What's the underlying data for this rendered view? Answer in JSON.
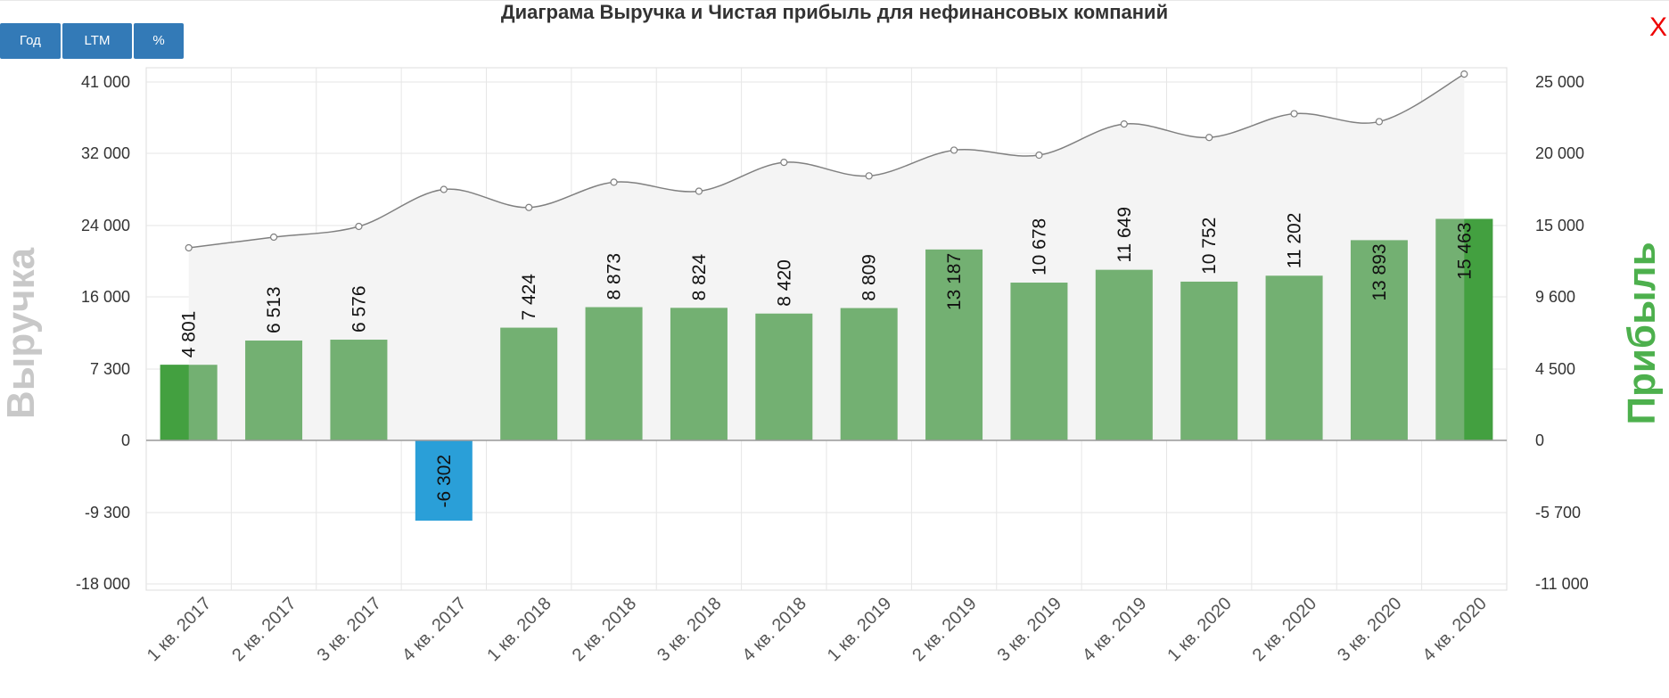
{
  "title": "Диаграма Выручка и Чистая прибыль для нефинансовых компаний",
  "buttons": {
    "year": "Год",
    "ltm": "LTM",
    "pct": "%"
  },
  "close_label": "X",
  "chart_data": {
    "type": "bar",
    "title": "Диаграма Выручка и Чистая прибыль для нефинансовых компаний",
    "categories": [
      "1 кв. 2017",
      "2 кв. 2017",
      "3 кв. 2017",
      "4 кв. 2017",
      "1 кв. 2018",
      "2 кв. 2018",
      "3 кв. 2018",
      "4 кв. 2018",
      "1 кв. 2019",
      "2 кв. 2019",
      "3 кв. 2019",
      "4 кв. 2019",
      "1 кв. 2020",
      "2 кв. 2020",
      "3 кв. 2020",
      "4 кв. 2020"
    ],
    "y_left": {
      "label": "Выручка",
      "ticks": [
        41000,
        32000,
        24000,
        16000,
        7300,
        0,
        -9300,
        -18000
      ],
      "tick_labels": [
        "41 000",
        "32 000",
        "24 000",
        "16 000",
        "7 300",
        "0",
        "-9 300",
        "-18 000"
      ]
    },
    "y_right": {
      "label": "Прибыль",
      "ticks": [
        25000,
        20000,
        15000,
        9600,
        4500,
        0,
        -5700,
        -11000
      ],
      "tick_labels": [
        "25 000",
        "20 000",
        "15 000",
        "9 600",
        "4 500",
        "0",
        "-5 700",
        "-11 000"
      ]
    },
    "series": [
      {
        "type": "line",
        "axis": "left",
        "values": [
          21500,
          22700,
          23900,
          28000,
          26000,
          28800,
          27800,
          31000,
          29500,
          32400,
          31800,
          35700,
          34000,
          37000,
          36000,
          42000
        ]
      },
      {
        "type": "bar",
        "axis": "right",
        "values": [
          4801,
          6513,
          6576,
          -6302,
          7424,
          8873,
          8824,
          8420,
          8809,
          13187,
          10678,
          11649,
          10752,
          11202,
          13893,
          15463
        ],
        "value_labels": [
          "4 801",
          "6 513",
          "6 576",
          "-6 302",
          "7 424",
          "8 873",
          "8 824",
          "8 420",
          "8 809",
          "13 187",
          "10 678",
          "11 649",
          "10 752",
          "11 202",
          "13 893",
          "15 463"
        ]
      }
    ],
    "colors": {
      "bar_positive": "#73b072",
      "bar_highlight": "#43a040",
      "bar_negative": "#2a9fd8",
      "line": "#808080",
      "area": "#f4f4f4"
    },
    "highlighted_bar_halves": [
      0,
      15
    ],
    "grid": true,
    "legend": "none"
  }
}
